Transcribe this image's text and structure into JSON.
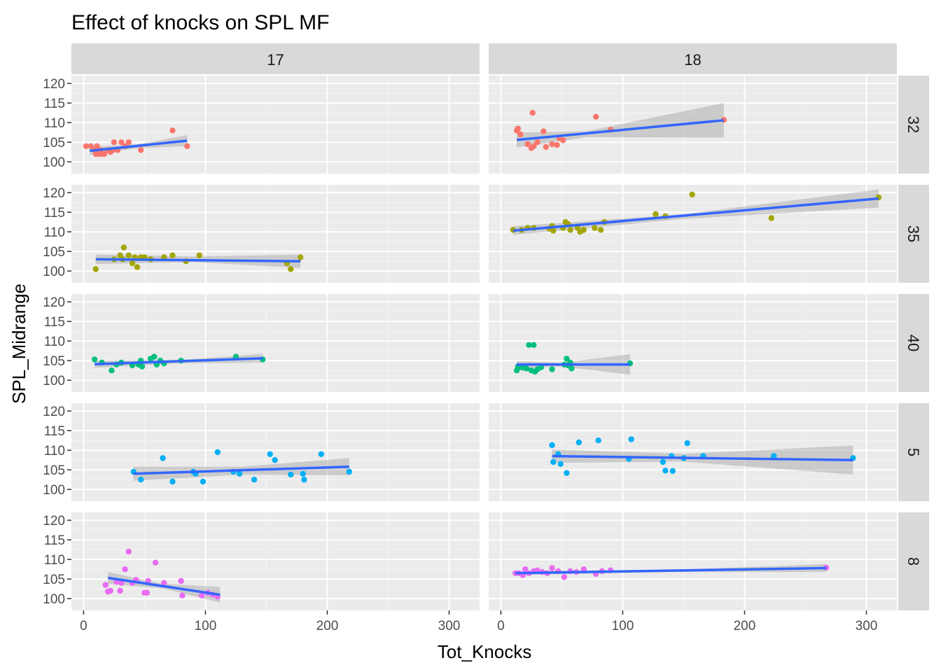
{
  "chart_data": {
    "type": "scatter",
    "title": "Effect of knocks on SPL MF",
    "xlabel": "Tot_Knocks",
    "ylabel": "SPL_Midrange",
    "xlim": [
      -10,
      325
    ],
    "ylim": [
      97,
      122
    ],
    "x_ticks": [
      0,
      100,
      200,
      300
    ],
    "y_ticks": [
      100,
      105,
      110,
      115,
      120
    ],
    "grid": true,
    "legend": "none",
    "column_facets": [
      "17",
      "18"
    ],
    "row_facets": [
      "32",
      "35",
      "40",
      "5",
      "8"
    ],
    "row_colors": {
      "32": "#F8766D",
      "35": "#A3A500",
      "40": "#00BF7D",
      "5": "#00B0F6",
      "8": "#E76BF3"
    },
    "smooth_color": "#3366FF",
    "band_color": "#999999",
    "panels": [
      {
        "col": "17",
        "row": "32",
        "points": [
          [
            2,
            104
          ],
          [
            6,
            104
          ],
          [
            9,
            103
          ],
          [
            10,
            102
          ],
          [
            11,
            104
          ],
          [
            12,
            102
          ],
          [
            14,
            103
          ],
          [
            15,
            102
          ],
          [
            17,
            102
          ],
          [
            20,
            103
          ],
          [
            22,
            102.5
          ],
          [
            24,
            103
          ],
          [
            25,
            105
          ],
          [
            28,
            103
          ],
          [
            31,
            105
          ],
          [
            34,
            104
          ],
          [
            37,
            105
          ],
          [
            47,
            103
          ],
          [
            73,
            108
          ],
          [
            85,
            104
          ]
        ],
        "fit": [
          [
            5,
            102.8
          ],
          [
            85,
            105.4
          ]
        ],
        "band_top": [
          [
            5,
            103.8
          ],
          [
            45,
            104.5
          ],
          [
            85,
            106.8
          ]
        ],
        "band_bottom": [
          [
            5,
            101.8
          ],
          [
            45,
            103.5
          ],
          [
            85,
            104.0
          ]
        ]
      },
      {
        "col": "18",
        "row": "32",
        "points": [
          [
            13,
            108
          ],
          [
            14,
            108.5
          ],
          [
            16,
            107
          ],
          [
            22,
            104.5
          ],
          [
            25,
            103.5
          ],
          [
            26,
            112.5
          ],
          [
            27,
            104
          ],
          [
            30,
            105
          ],
          [
            35,
            107.8
          ],
          [
            37,
            103.8
          ],
          [
            42,
            104.5
          ],
          [
            46,
            104.3
          ],
          [
            48,
            106
          ],
          [
            51,
            105.5
          ],
          [
            78,
            111.5
          ],
          [
            90,
            108.2
          ],
          [
            183,
            110.7
          ]
        ],
        "fit": [
          [
            13,
            105.6
          ],
          [
            183,
            110.6
          ]
        ],
        "band_top": [
          [
            13,
            107.5
          ],
          [
            70,
            107.8
          ],
          [
            183,
            115.0
          ]
        ],
        "band_bottom": [
          [
            13,
            103.7
          ],
          [
            70,
            106.3
          ],
          [
            183,
            106.2
          ]
        ]
      },
      {
        "col": "17",
        "row": "35",
        "points": [
          [
            10,
            100.5
          ],
          [
            25,
            103
          ],
          [
            30,
            104
          ],
          [
            32,
            103
          ],
          [
            33,
            106
          ],
          [
            37,
            104
          ],
          [
            40,
            102
          ],
          [
            42,
            103.5
          ],
          [
            44,
            101
          ],
          [
            47,
            103.5
          ],
          [
            50,
            103.5
          ],
          [
            55,
            103
          ],
          [
            66,
            103.5
          ],
          [
            73,
            104
          ],
          [
            84,
            102.5
          ],
          [
            95,
            104
          ],
          [
            167,
            102
          ],
          [
            170,
            100.5
          ],
          [
            178,
            103.5
          ]
        ],
        "fit": [
          [
            10,
            103
          ],
          [
            178,
            102.5
          ]
        ],
        "band_top": [
          [
            10,
            104.2
          ],
          [
            90,
            103.7
          ],
          [
            178,
            104.2
          ]
        ],
        "band_bottom": [
          [
            10,
            101.8
          ],
          [
            90,
            102.3
          ],
          [
            178,
            100.8
          ]
        ]
      },
      {
        "col": "18",
        "row": "35",
        "points": [
          [
            10,
            110.5
          ],
          [
            17,
            110.5
          ],
          [
            22,
            111
          ],
          [
            27,
            111
          ],
          [
            40,
            110.8
          ],
          [
            42,
            111.5
          ],
          [
            43,
            110.3
          ],
          [
            51,
            111
          ],
          [
            53,
            112.5
          ],
          [
            55,
            112
          ],
          [
            57,
            110.5
          ],
          [
            63,
            111
          ],
          [
            65,
            110
          ],
          [
            68,
            110.5
          ],
          [
            77,
            111
          ],
          [
            82,
            110.5
          ],
          [
            85,
            112.5
          ],
          [
            127,
            114.5
          ],
          [
            135,
            114
          ],
          [
            157,
            119.5
          ],
          [
            222,
            113.5
          ],
          [
            310,
            118.8
          ]
        ],
        "fit": [
          [
            10,
            110.3
          ],
          [
            310,
            118.5
          ]
        ],
        "band_top": [
          [
            10,
            111.4
          ],
          [
            150,
            114.5
          ],
          [
            310,
            120.8
          ]
        ],
        "band_bottom": [
          [
            10,
            109.2
          ],
          [
            150,
            113.3
          ],
          [
            310,
            116.2
          ]
        ]
      },
      {
        "col": "17",
        "row": "40",
        "points": [
          [
            9,
            105.3
          ],
          [
            15,
            104.5
          ],
          [
            23,
            102.5
          ],
          [
            27,
            104
          ],
          [
            31,
            104.5
          ],
          [
            40,
            103.8
          ],
          [
            45,
            104
          ],
          [
            47,
            105
          ],
          [
            48,
            103.5
          ],
          [
            55,
            105.5
          ],
          [
            58,
            106
          ],
          [
            60,
            104
          ],
          [
            63,
            105
          ],
          [
            66,
            104.3
          ],
          [
            80,
            105
          ],
          [
            125,
            106
          ],
          [
            147,
            105.3
          ]
        ],
        "fit": [
          [
            9,
            104.1
          ],
          [
            147,
            105.6
          ]
        ],
        "band_top": [
          [
            9,
            105.0
          ],
          [
            80,
            105.2
          ],
          [
            147,
            106.7
          ]
        ],
        "band_bottom": [
          [
            9,
            103.2
          ],
          [
            80,
            104.3
          ],
          [
            147,
            104.5
          ]
        ]
      },
      {
        "col": "18",
        "row": "40",
        "points": [
          [
            13,
            102.5
          ],
          [
            14,
            103.5
          ],
          [
            15,
            103.3
          ],
          [
            18,
            103.2
          ],
          [
            21,
            103
          ],
          [
            23,
            109
          ],
          [
            25,
            102.5
          ],
          [
            27,
            109
          ],
          [
            28,
            102.2
          ],
          [
            30,
            102.8
          ],
          [
            33,
            103.3
          ],
          [
            42,
            102.8
          ],
          [
            52,
            104
          ],
          [
            54,
            105.5
          ],
          [
            55,
            103.8
          ],
          [
            57,
            104.5
          ],
          [
            58,
            103
          ],
          [
            106,
            104.3
          ]
        ],
        "fit": [
          [
            13,
            104
          ],
          [
            106,
            104
          ]
        ],
        "band_top": [
          [
            13,
            104.9
          ],
          [
            50,
            104.5
          ],
          [
            106,
            106.6
          ]
        ],
        "band_bottom": [
          [
            13,
            103.1
          ],
          [
            50,
            103.5
          ],
          [
            106,
            101.4
          ]
        ]
      },
      {
        "col": "17",
        "row": "5",
        "points": [
          [
            41,
            104.5
          ],
          [
            47,
            102.5
          ],
          [
            65,
            108
          ],
          [
            73,
            102
          ],
          [
            90,
            104.5
          ],
          [
            92,
            104
          ],
          [
            98,
            102
          ],
          [
            110,
            109.5
          ],
          [
            123,
            104.5
          ],
          [
            128,
            104
          ],
          [
            140,
            102.5
          ],
          [
            153,
            109
          ],
          [
            157,
            107.5
          ],
          [
            170,
            103.8
          ],
          [
            180,
            104
          ],
          [
            181,
            102.5
          ],
          [
            195,
            109
          ],
          [
            218,
            104.5
          ]
        ],
        "fit": [
          [
            41,
            104
          ],
          [
            218,
            105.8
          ]
        ],
        "band_top": [
          [
            41,
            105.8
          ],
          [
            130,
            105.8
          ],
          [
            218,
            108.0
          ]
        ],
        "band_bottom": [
          [
            41,
            102.2
          ],
          [
            130,
            103.8
          ],
          [
            218,
            103.6
          ]
        ]
      },
      {
        "col": "18",
        "row": "5",
        "points": [
          [
            42,
            111.3
          ],
          [
            43,
            107
          ],
          [
            47,
            109
          ],
          [
            49,
            106.5
          ],
          [
            54,
            104.2
          ],
          [
            64,
            112
          ],
          [
            80,
            112.5
          ],
          [
            105,
            107.8
          ],
          [
            107,
            112.8
          ],
          [
            133,
            107
          ],
          [
            135,
            104.8
          ],
          [
            140,
            108.5
          ],
          [
            141,
            104.7
          ],
          [
            150,
            108
          ],
          [
            153,
            111.8
          ],
          [
            166,
            108.5
          ],
          [
            224,
            108.5
          ],
          [
            289,
            108
          ]
        ],
        "fit": [
          [
            42,
            108.5
          ],
          [
            289,
            107.5
          ]
        ],
        "band_top": [
          [
            42,
            110.2
          ],
          [
            150,
            109.1
          ],
          [
            289,
            111.2
          ]
        ],
        "band_bottom": [
          [
            42,
            106.8
          ],
          [
            150,
            107.1
          ],
          [
            289,
            103.8
          ]
        ]
      },
      {
        "col": "17",
        "row": "8",
        "points": [
          [
            18,
            103.5
          ],
          [
            20,
            101.8
          ],
          [
            22,
            102
          ],
          [
            27,
            104.3
          ],
          [
            30,
            102
          ],
          [
            31,
            104
          ],
          [
            34,
            107.5
          ],
          [
            37,
            112
          ],
          [
            40,
            104
          ],
          [
            43,
            104.8
          ],
          [
            50,
            101.5
          ],
          [
            52,
            101.5
          ],
          [
            53,
            104.5
          ],
          [
            59,
            109.2
          ],
          [
            66,
            104
          ],
          [
            80,
            104.5
          ],
          [
            81,
            100.8
          ],
          [
            97,
            100.8
          ],
          [
            102,
            101.5
          ],
          [
            106,
            101
          ],
          [
            110,
            100.5
          ]
        ],
        "fit": [
          [
            20,
            105.3
          ],
          [
            112,
            101
          ]
        ],
        "band_top": [
          [
            20,
            106.8
          ],
          [
            65,
            103.8
          ],
          [
            112,
            103.0
          ]
        ],
        "band_bottom": [
          [
            20,
            103.8
          ],
          [
            65,
            102.6
          ],
          [
            112,
            99.0
          ]
        ]
      },
      {
        "col": "18",
        "row": "8",
        "points": [
          [
            12,
            106.5
          ],
          [
            15,
            106.5
          ],
          [
            18,
            106
          ],
          [
            20,
            107.5
          ],
          [
            23,
            106.5
          ],
          [
            27,
            107
          ],
          [
            30,
            107.2
          ],
          [
            34,
            106.8
          ],
          [
            38,
            106.5
          ],
          [
            42,
            107.8
          ],
          [
            47,
            107
          ],
          [
            52,
            105.5
          ],
          [
            57,
            107
          ],
          [
            62,
            106.8
          ],
          [
            68,
            107.5
          ],
          [
            78,
            106.3
          ],
          [
            83,
            107
          ],
          [
            90,
            107.2
          ],
          [
            267,
            107.9
          ]
        ],
        "fit": [
          [
            12,
            106.5
          ],
          [
            267,
            107.8
          ]
        ],
        "band_top": [
          [
            12,
            107.0
          ],
          [
            140,
            107.4
          ],
          [
            267,
            108.8
          ]
        ],
        "band_bottom": [
          [
            12,
            106.0
          ],
          [
            140,
            106.8
          ],
          [
            267,
            106.8
          ]
        ]
      }
    ]
  }
}
